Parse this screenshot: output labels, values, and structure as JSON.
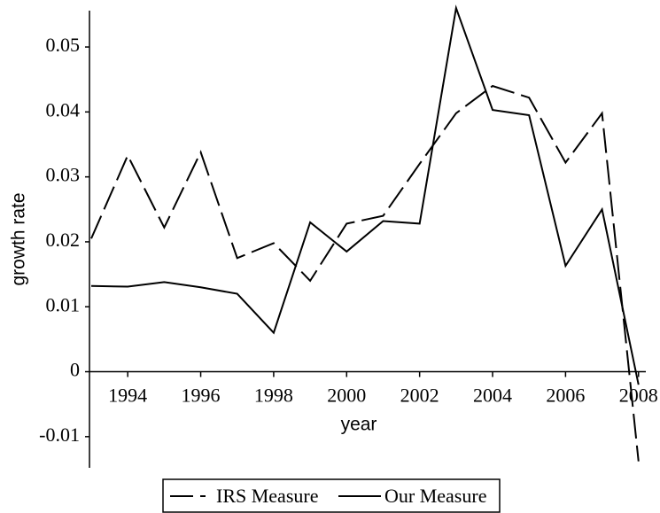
{
  "chart_data": {
    "type": "line",
    "x_label": "year",
    "y_label": "growth rate",
    "x": [
      1993,
      1994,
      1995,
      1996,
      1997,
      1998,
      1999,
      2000,
      2001,
      2002,
      2003,
      2004,
      2005,
      2006,
      2007,
      2008
    ],
    "series": [
      {
        "name": "IRS Measure",
        "color": "#000000",
        "dash": "dashed",
        "values": [
          0.0205,
          0.0333,
          0.0222,
          0.0338,
          0.0175,
          0.0198,
          0.014,
          0.0228,
          0.024,
          0.032,
          0.0398,
          0.044,
          0.0422,
          0.0322,
          0.0398,
          -0.0138
        ]
      },
      {
        "name": "Our Measure",
        "color": "#000000",
        "dash": "solid",
        "values": [
          0.0132,
          0.0131,
          0.0138,
          0.013,
          0.012,
          0.006,
          0.023,
          0.0185,
          0.0232,
          0.0228,
          0.056,
          0.0403,
          0.0395,
          0.0163,
          0.025,
          -0.002
        ]
      }
    ],
    "xlim": [
      1993,
      2008.2
    ],
    "xticks": [
      1994,
      1996,
      1998,
      2000,
      2002,
      2004,
      2006,
      2008
    ],
    "ylim": [
      -0.0148,
      0.0556
    ],
    "yticks": [
      -0.01,
      0,
      0.01,
      0.02,
      0.03,
      0.04,
      0.05
    ],
    "grid": false,
    "legend": "bottom"
  }
}
